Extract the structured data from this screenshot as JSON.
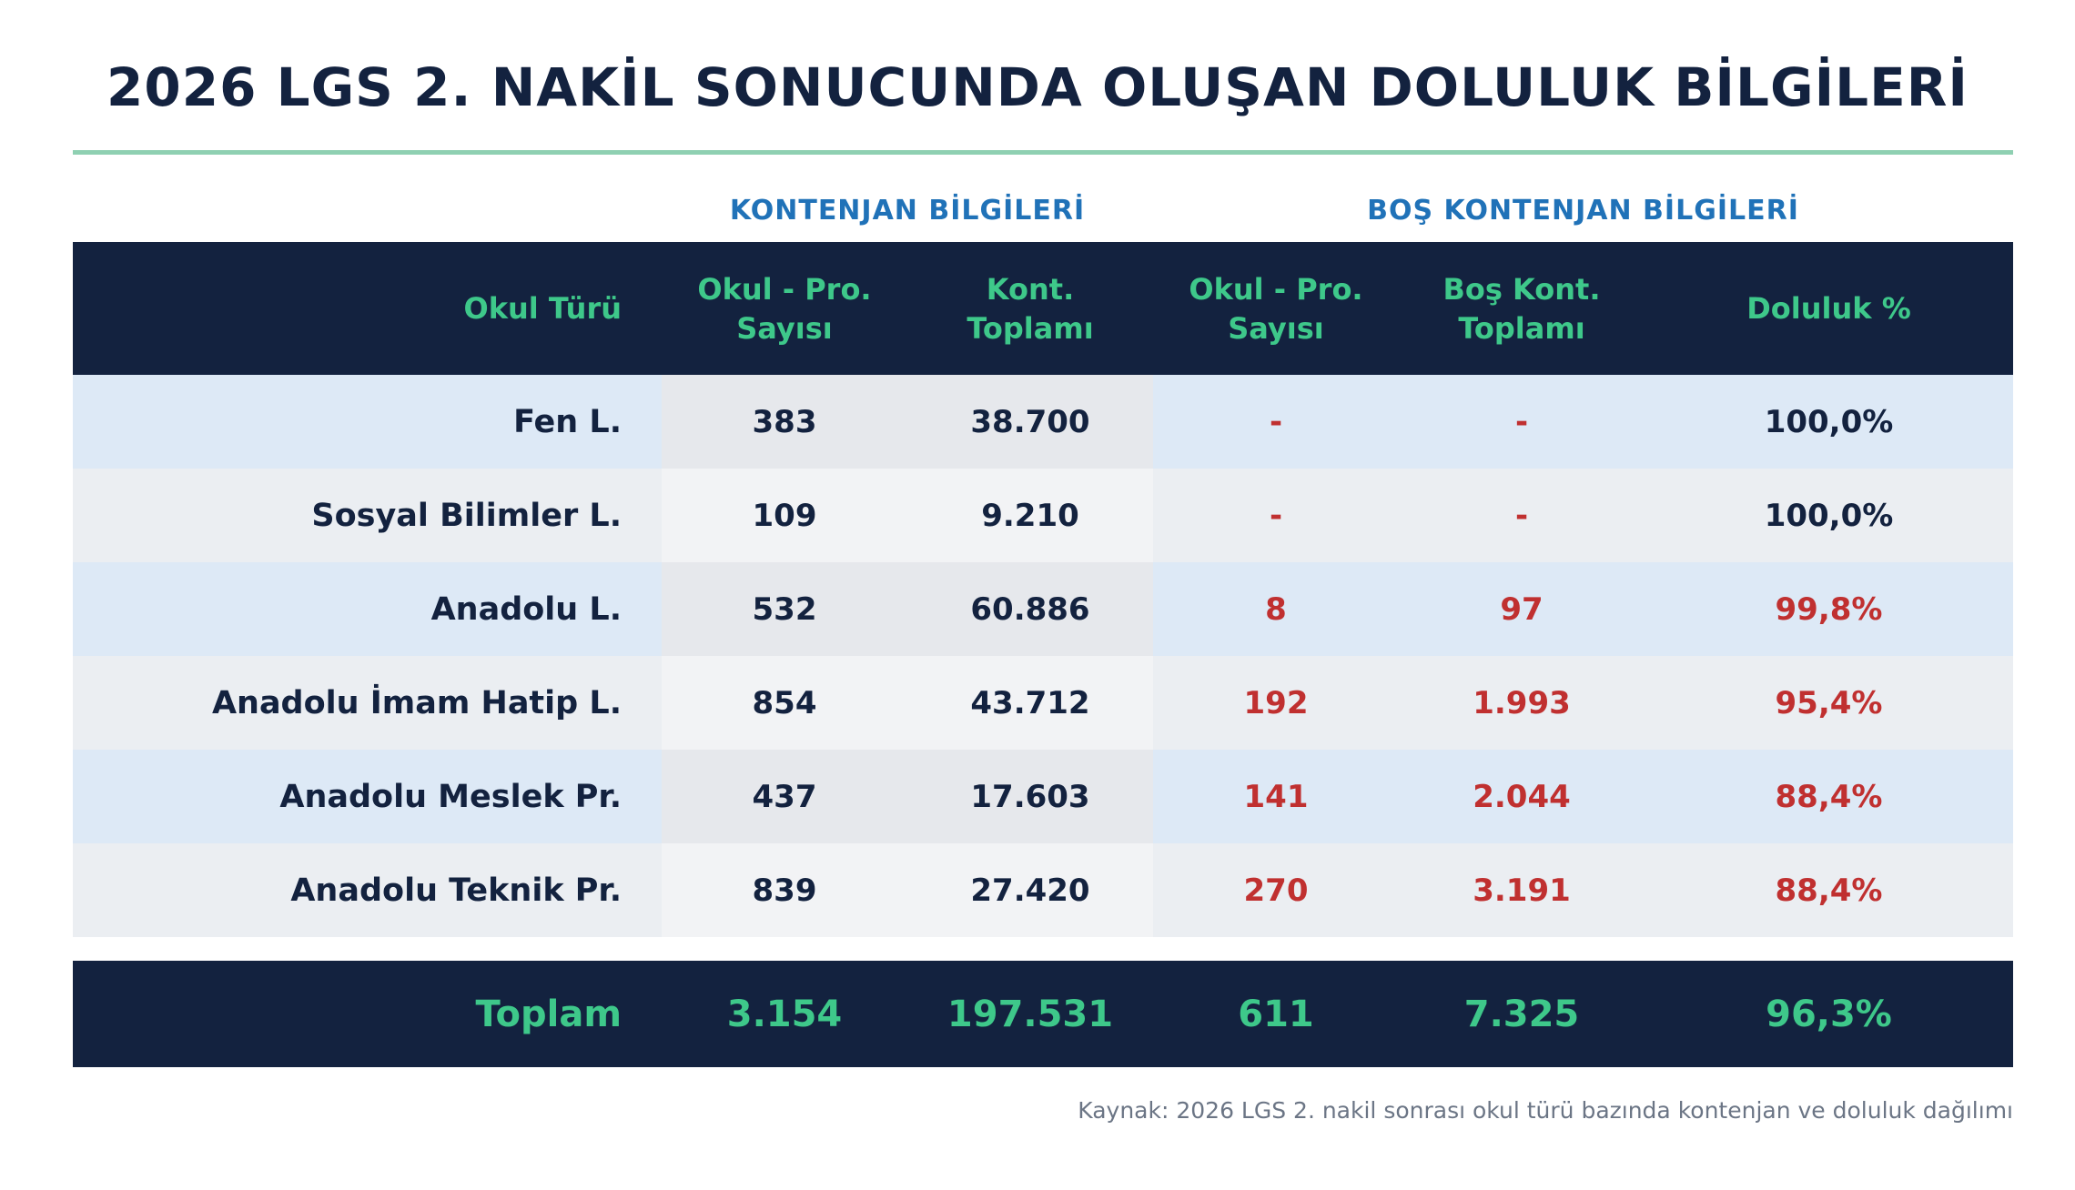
{
  "title": "2026 LGS 2. NAKİL SONUCUNDA OLUŞAN DOLULUK BİLGİLERİ",
  "groups": {
    "kontenjan": "KONTENJAN BİLGİLERİ",
    "bos": "BOŞ KONTENJAN BİLGİLERİ"
  },
  "columns": [
    "Okul Türü",
    "Okul - Pro.\nSayısı",
    "Kont.\nToplamı",
    "Okul - Pro.\nSayısı",
    "Boş Kont.\nToplamı",
    "Doluluk %"
  ],
  "rows": [
    [
      "Fen L.",
      "383",
      "38.700",
      "-",
      "-",
      "100,0%"
    ],
    [
      "Sosyal Bilimler L.",
      "109",
      "9.210",
      "-",
      "-",
      "100,0%"
    ],
    [
      "Anadolu L.",
      "532",
      "60.886",
      "8",
      "97",
      "99,8%"
    ],
    [
      "Anadolu İmam Hatip L.",
      "854",
      "43.712",
      "192",
      "1.993",
      "95,4%"
    ],
    [
      "Anadolu Meslek Pr.",
      "437",
      "17.603",
      "141",
      "2.044",
      "88,4%"
    ],
    [
      "Anadolu Teknik Pr.",
      "839",
      "27.420",
      "270",
      "3.191",
      "88,4%"
    ]
  ],
  "total": [
    "Toplam",
    "3.154",
    "197.531",
    "611",
    "7.325",
    "96,3%"
  ],
  "source": "Kaynak: 2026 LGS 2. nakil sonrası okul türü bazında kontenjan ve doluluk dağılımı",
  "colors": {
    "navy": "#13223f",
    "green": "#3ec88a",
    "blue": "#2072b8",
    "red": "#c03030"
  }
}
